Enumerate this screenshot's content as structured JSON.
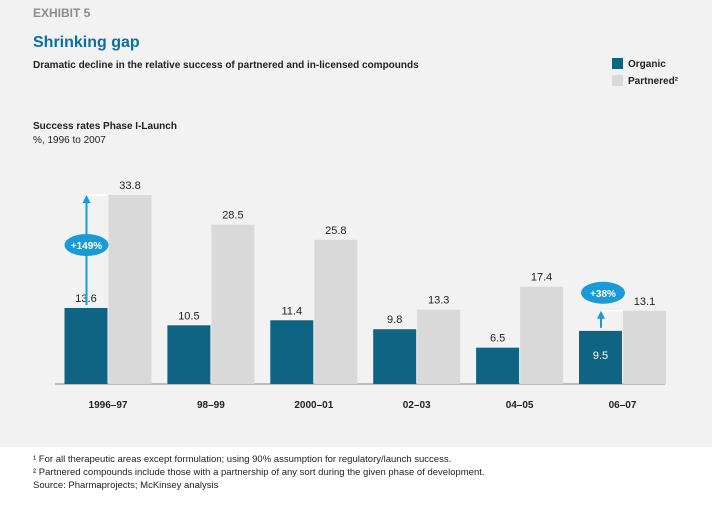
{
  "chart_data": {
    "type": "bar",
    "exhibit": "EXHIBIT 5",
    "title": "Shrinking gap",
    "subtitle": "Dramatic decline in the relative success of partnered and in-licensed compounds",
    "axis_title": "Success rates Phase I-Launch",
    "axis_subtitle": "%, 1996 to 2007",
    "categories": [
      "1996–97",
      "98–99",
      "2000–01",
      "02–03",
      "04–05",
      "06–07"
    ],
    "series": [
      {
        "name": "Organic",
        "color": "#0e6482",
        "values": [
          13.6,
          10.5,
          11.4,
          9.8,
          6.5,
          9.5
        ]
      },
      {
        "name": "Partnered²",
        "color": "#d9d9d9",
        "values": [
          33.8,
          28.5,
          25.8,
          13.3,
          17.4,
          13.1
        ]
      }
    ],
    "annotations": [
      "+149%",
      "+38%"
    ],
    "footnotes": [
      "¹ For all therapeutic areas except formulation; using 90% assumption for regulatory/launch success.",
      "² Partnered compounds include those with a partnership of any sort during the given phase of development.",
      "Source: Pharmaprojects; McKinsey analysis"
    ]
  }
}
